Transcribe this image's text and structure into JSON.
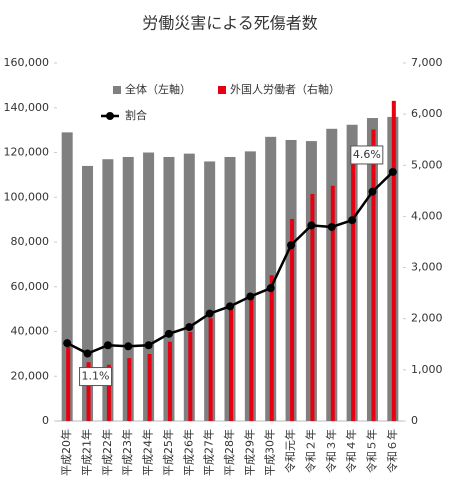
{
  "chart_data": {
    "type": "bar-line",
    "title": "労働災害による死傷者数",
    "categories": [
      "平成20年",
      "平成21年",
      "平成22年",
      "平成23年",
      "平成24年",
      "平成25年",
      "平成26年",
      "平成27年",
      "平成28年",
      "平成29年",
      "平成30年",
      "令和元年",
      "令和２年",
      "令和３年",
      "令和４年",
      "令和５年",
      "令和６年"
    ],
    "series": [
      {
        "name": "全体（左軸）",
        "color": "#808080",
        "kind": "bar",
        "axis": "y",
        "values": [
          129000,
          114000,
          117000,
          118000,
          120000,
          118000,
          119500,
          116000,
          118000,
          120500,
          127000,
          125600,
          125100,
          130600,
          132400,
          135400,
          135900
        ]
      },
      {
        "name": "外国人労働者（右軸）",
        "color": "#e60012",
        "kind": "bar",
        "axis": "y2",
        "values": [
          1450,
          1150,
          1100,
          1230,
          1310,
          1550,
          1740,
          2010,
          2230,
          2500,
          2850,
          3950,
          4440,
          4600,
          5200,
          5700,
          6260
        ]
      },
      {
        "name": "割合",
        "color": "#000000",
        "kind": "line",
        "axis": "y3",
        "values": [
          1.3,
          1.1,
          1.26,
          1.24,
          1.26,
          1.48,
          1.61,
          1.87,
          2.01,
          2.2,
          2.36,
          3.19,
          3.57,
          3.54,
          3.67,
          4.22,
          4.6
        ],
        "value_labels": [
          null,
          "1.1%",
          null,
          null,
          null,
          null,
          null,
          null,
          null,
          null,
          null,
          null,
          null,
          null,
          null,
          null,
          "4.6%"
        ]
      }
    ],
    "ylim": [
      0,
      160000
    ],
    "yticks": [
      0,
      {
        "value": 20000,
        "label": "20,000"
      },
      {
        "value": 40000,
        "label": "40,000"
      },
      {
        "value": 60000,
        "label": "60,000"
      },
      {
        "value": 80000,
        "label": "80,000"
      },
      {
        "value": 100000,
        "label": "100,000"
      },
      {
        "value": 120000,
        "label": "120,000"
      },
      {
        "value": 140000,
        "label": "140,000"
      },
      {
        "value": 160000,
        "label": "160,000"
      }
    ],
    "y2lim": [
      0,
      7000
    ],
    "y2ticks": [
      0,
      {
        "value": 1000,
        "label": "1,000"
      },
      {
        "value": 2000,
        "label": "2,000"
      },
      {
        "value": 3000,
        "label": "3,000"
      },
      {
        "value": 4000,
        "label": "4,000"
      },
      {
        "value": 5000,
        "label": "5,000"
      },
      {
        "value": 6000,
        "label": "6,000"
      },
      {
        "value": 7000,
        "label": "7,000"
      }
    ],
    "y3lim": [
      -0.2,
      6.7
    ],
    "grid": false
  }
}
